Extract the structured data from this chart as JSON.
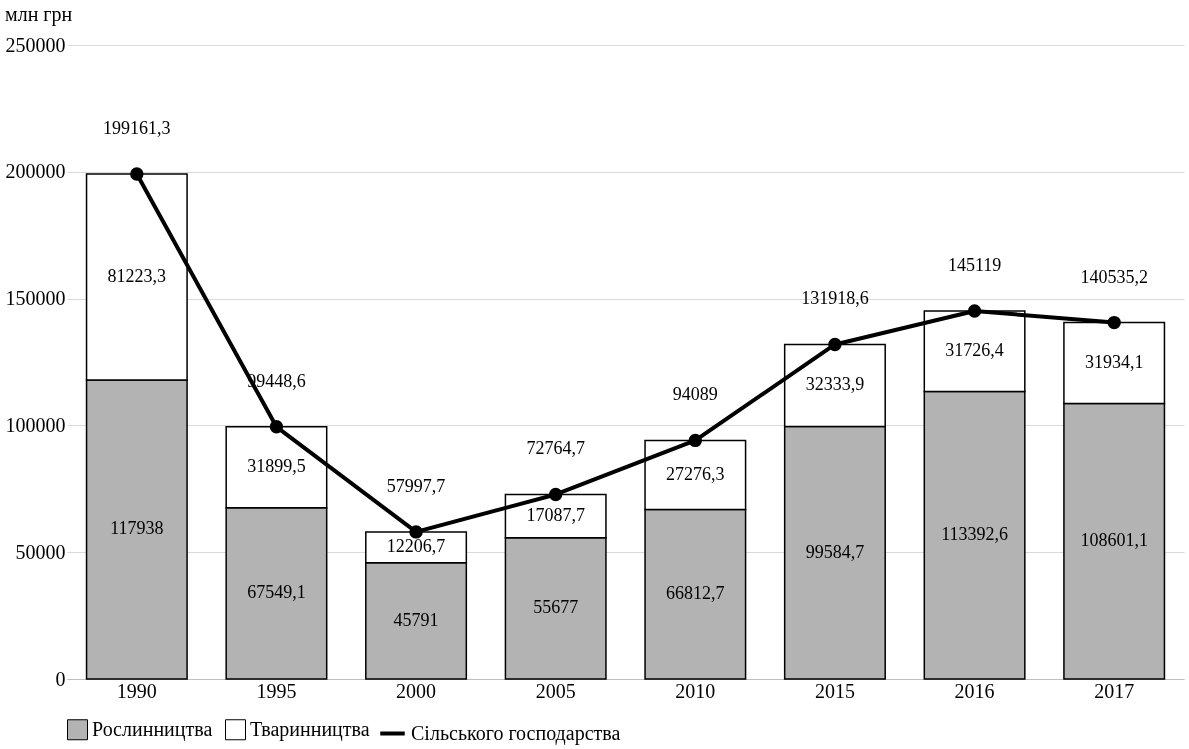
{
  "chart_data": {
    "type": "bar",
    "stacked": true,
    "ylabel": "млн грн",
    "categories": [
      "1990",
      "1995",
      "2000",
      "2005",
      "2010",
      "2015",
      "2016",
      "2017"
    ],
    "series": [
      {
        "name": "Рослинництва",
        "color": "#b3b3b3",
        "values": [
          117938,
          67549.1,
          45791,
          55677,
          66812.7,
          99584.7,
          113392.6,
          108601.1
        ],
        "value_labels": [
          "117938",
          "67549,1",
          "45791",
          "55677",
          "66812,7",
          "99584,7",
          "113392,6",
          "108601,1"
        ]
      },
      {
        "name": "Тваринництва",
        "color": "#ffffff",
        "values": [
          81223.3,
          31899.5,
          12206.7,
          17087.7,
          27276.3,
          32333.9,
          31726.4,
          31934.1
        ],
        "value_labels": [
          "81223,3",
          "31899,5",
          "12206,7",
          "17087,7",
          "27276,3",
          "32333,9",
          "31726,4",
          "31934,1"
        ]
      },
      {
        "name": "Сільського господарства",
        "type": "line",
        "color": "#000000",
        "marker": "circle",
        "line_style": "solid",
        "values": [
          199161.3,
          99448.6,
          57997.7,
          72764.7,
          94089,
          131918.6,
          145119,
          140535.2
        ],
        "value_labels": [
          "199161,3",
          "99448,6",
          "57997,7",
          "72764,7",
          "94089",
          "131918,6",
          "145119",
          "140535,2"
        ]
      }
    ],
    "ylim": [
      0,
      250000
    ],
    "yticks": [
      0,
      50000,
      100000,
      150000,
      200000,
      250000
    ],
    "grid": "y",
    "legend": "bottom"
  }
}
